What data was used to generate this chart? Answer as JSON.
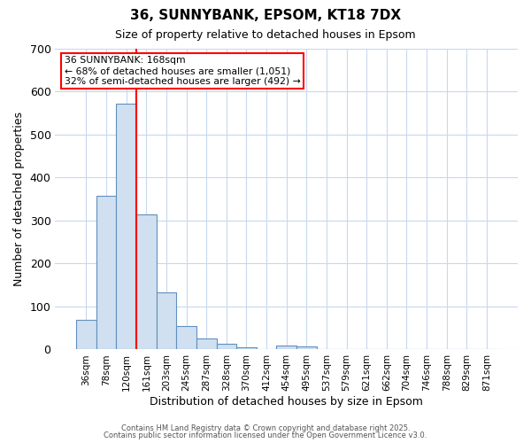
{
  "title1": "36, SUNNYBANK, EPSOM, KT18 7DX",
  "title2": "Size of property relative to detached houses in Epsom",
  "xlabel": "Distribution of detached houses by size in Epsom",
  "ylabel": "Number of detached properties",
  "categories": [
    "36sqm",
    "78sqm",
    "120sqm",
    "161sqm",
    "203sqm",
    "245sqm",
    "287sqm",
    "328sqm",
    "370sqm",
    "412sqm",
    "454sqm",
    "495sqm",
    "537sqm",
    "579sqm",
    "621sqm",
    "662sqm",
    "704sqm",
    "746sqm",
    "788sqm",
    "829sqm",
    "871sqm"
  ],
  "values": [
    68,
    357,
    573,
    314,
    133,
    55,
    26,
    14,
    5,
    0,
    9,
    8,
    0,
    0,
    0,
    0,
    0,
    0,
    0,
    0,
    0
  ],
  "bar_color": "#d0e0f0",
  "bar_edge_color": "#6090c0",
  "vline_index": 3,
  "vline_color": "red",
  "annotation_text": "36 SUNNYBANK: 168sqm\n← 68% of detached houses are smaller (1,051)\n32% of semi-detached houses are larger (492) →",
  "annotation_box_color": "white",
  "annotation_box_edge": "red",
  "ylim": [
    0,
    700
  ],
  "yticks": [
    0,
    100,
    200,
    300,
    400,
    500,
    600,
    700
  ],
  "grid_color": "#c8d8f0",
  "bg_color": "#ffffff",
  "plot_bg_color": "#ffffff",
  "footer1": "Contains HM Land Registry data © Crown copyright and database right 2025.",
  "footer2": "Contains public sector information licensed under the Open Government Licence v3.0."
}
